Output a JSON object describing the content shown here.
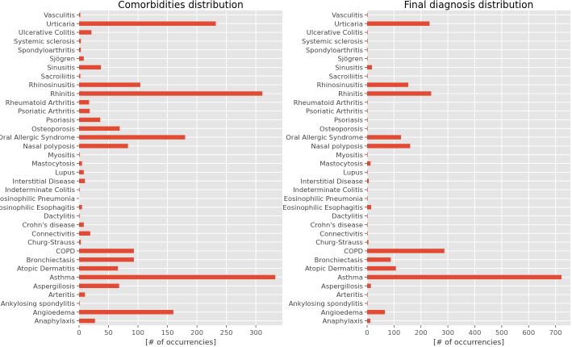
{
  "chart_data": [
    {
      "type": "bar",
      "orientation": "horizontal",
      "title": "Comorbidities distribution",
      "xlabel": "[# of occurrencies]",
      "ylabel": "",
      "xlim": [
        0,
        345
      ],
      "xticks": [
        0,
        50,
        100,
        150,
        200,
        250,
        300
      ],
      "grid": true,
      "categories": [
        "Vasculitis",
        "Urticaria",
        "Ulcerative Colitis",
        "Systemic sclerosis",
        "Spondyloarthritis",
        "Sjögren",
        "Sinusitis",
        "Sacroiliitis",
        "Rhinosinusitis",
        "Rhinitis",
        "Rheumatoid Arthritis",
        "Psoriatic Arthritis",
        "Psoriasis",
        "Osteoporosis",
        "Oral Allergic Syndrome ",
        "Nasal polyposis",
        "Myositis",
        "Mastocytosis",
        "Lupus",
        "Interstitial Disease",
        "Indeterminate Colitis",
        "Eosinophilic Pneumonia",
        "Eosinophilic Esophagitis",
        "Dactylitis",
        "Crohn's disease",
        "Connectivitis",
        "Churg-Strauss",
        "COPD",
        "Bronchiectasis",
        "Atopic Dermatitis",
        "Asthma",
        "Aspergillosis",
        "Arteritis",
        "Ankylosing spondylitis",
        "Angioedema",
        "Anaphylaxis"
      ],
      "values": [
        2,
        232,
        21,
        3,
        3,
        8,
        37,
        2,
        104,
        311,
        17,
        18,
        36,
        69,
        180,
        83,
        1,
        5,
        8,
        10,
        1,
        0,
        5,
        1,
        8,
        19,
        3,
        93,
        93,
        66,
        333,
        68,
        10,
        1,
        160,
        27
      ]
    },
    {
      "type": "bar",
      "orientation": "horizontal",
      "title": "Final diagnosis distribution",
      "xlabel": "[# of occurrencies]",
      "ylabel": "",
      "xlim": [
        0,
        755
      ],
      "xticks": [
        0,
        100,
        200,
        300,
        400,
        500,
        600,
        700
      ],
      "grid": true,
      "categories": [
        "Vasculitis",
        "Urticaria",
        "Ulcerative Colitis",
        "Systemic sclerosis",
        "Spondyloarthritis",
        "Sjögren",
        "Sinusitis",
        "Sacroiliitis",
        "Rhinosinusitis",
        "Rhinitis",
        "Rheumatoid Arthritis",
        "Psoriatic Arthritis",
        "Psoriasis",
        "Osteoporosis",
        "Oral Allergic Syndrome",
        "Nasal polyposis",
        "Myositis",
        "Mastocytosis",
        "Lupus",
        "Interstitial Disease",
        "Indeterminate Colitis",
        "Eosinophilic Pneumonia",
        "Eosinophilic Esophagitis",
        "Dactylitis",
        "Crohn's disease",
        "Connectivitis",
        "Churg-Strauss",
        "COPD",
        "Bronchiectasis",
        "Atopic Dermatitis",
        "Asthma",
        "Aspergillosis",
        "Arteritis",
        "Ankylosing spondylitis",
        "Angioedema",
        "Anaphylaxis"
      ],
      "values": [
        2,
        232,
        2,
        2,
        2,
        2,
        18,
        2,
        153,
        238,
        2,
        2,
        2,
        2,
        126,
        160,
        2,
        13,
        2,
        6,
        2,
        2,
        15,
        2,
        2,
        2,
        5,
        287,
        88,
        107,
        722,
        14,
        2,
        2,
        66,
        12
      ]
    }
  ],
  "style": {
    "bar_color": "#e24a33",
    "axes_bg": "#e5e5e5",
    "grid_color": "#ffffff"
  }
}
